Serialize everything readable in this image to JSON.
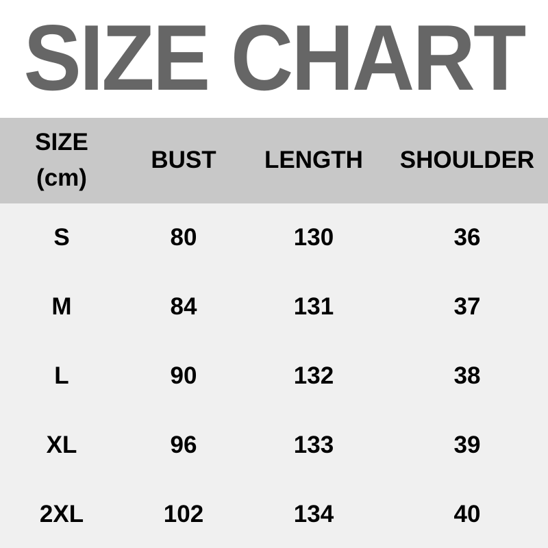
{
  "title": "SIZE CHART",
  "colors": {
    "title": "#666666",
    "header_bg": "#c8c8c8",
    "body_bg": "#f0f0f0"
  },
  "headers": {
    "size_line1": "SIZE",
    "size_line2": "(cm)",
    "bust": "BUST",
    "length": "LENGTH",
    "shoulder": "SHOULDER"
  },
  "rows": [
    {
      "size": "S",
      "bust": "80",
      "length": "130",
      "shoulder": "36"
    },
    {
      "size": "M",
      "bust": "84",
      "length": "131",
      "shoulder": "37"
    },
    {
      "size": "L",
      "bust": "90",
      "length": "132",
      "shoulder": "38"
    },
    {
      "size": "XL",
      "bust": "96",
      "length": "133",
      "shoulder": "39"
    },
    {
      "size": "2XL",
      "bust": "102",
      "length": "134",
      "shoulder": "40"
    }
  ]
}
